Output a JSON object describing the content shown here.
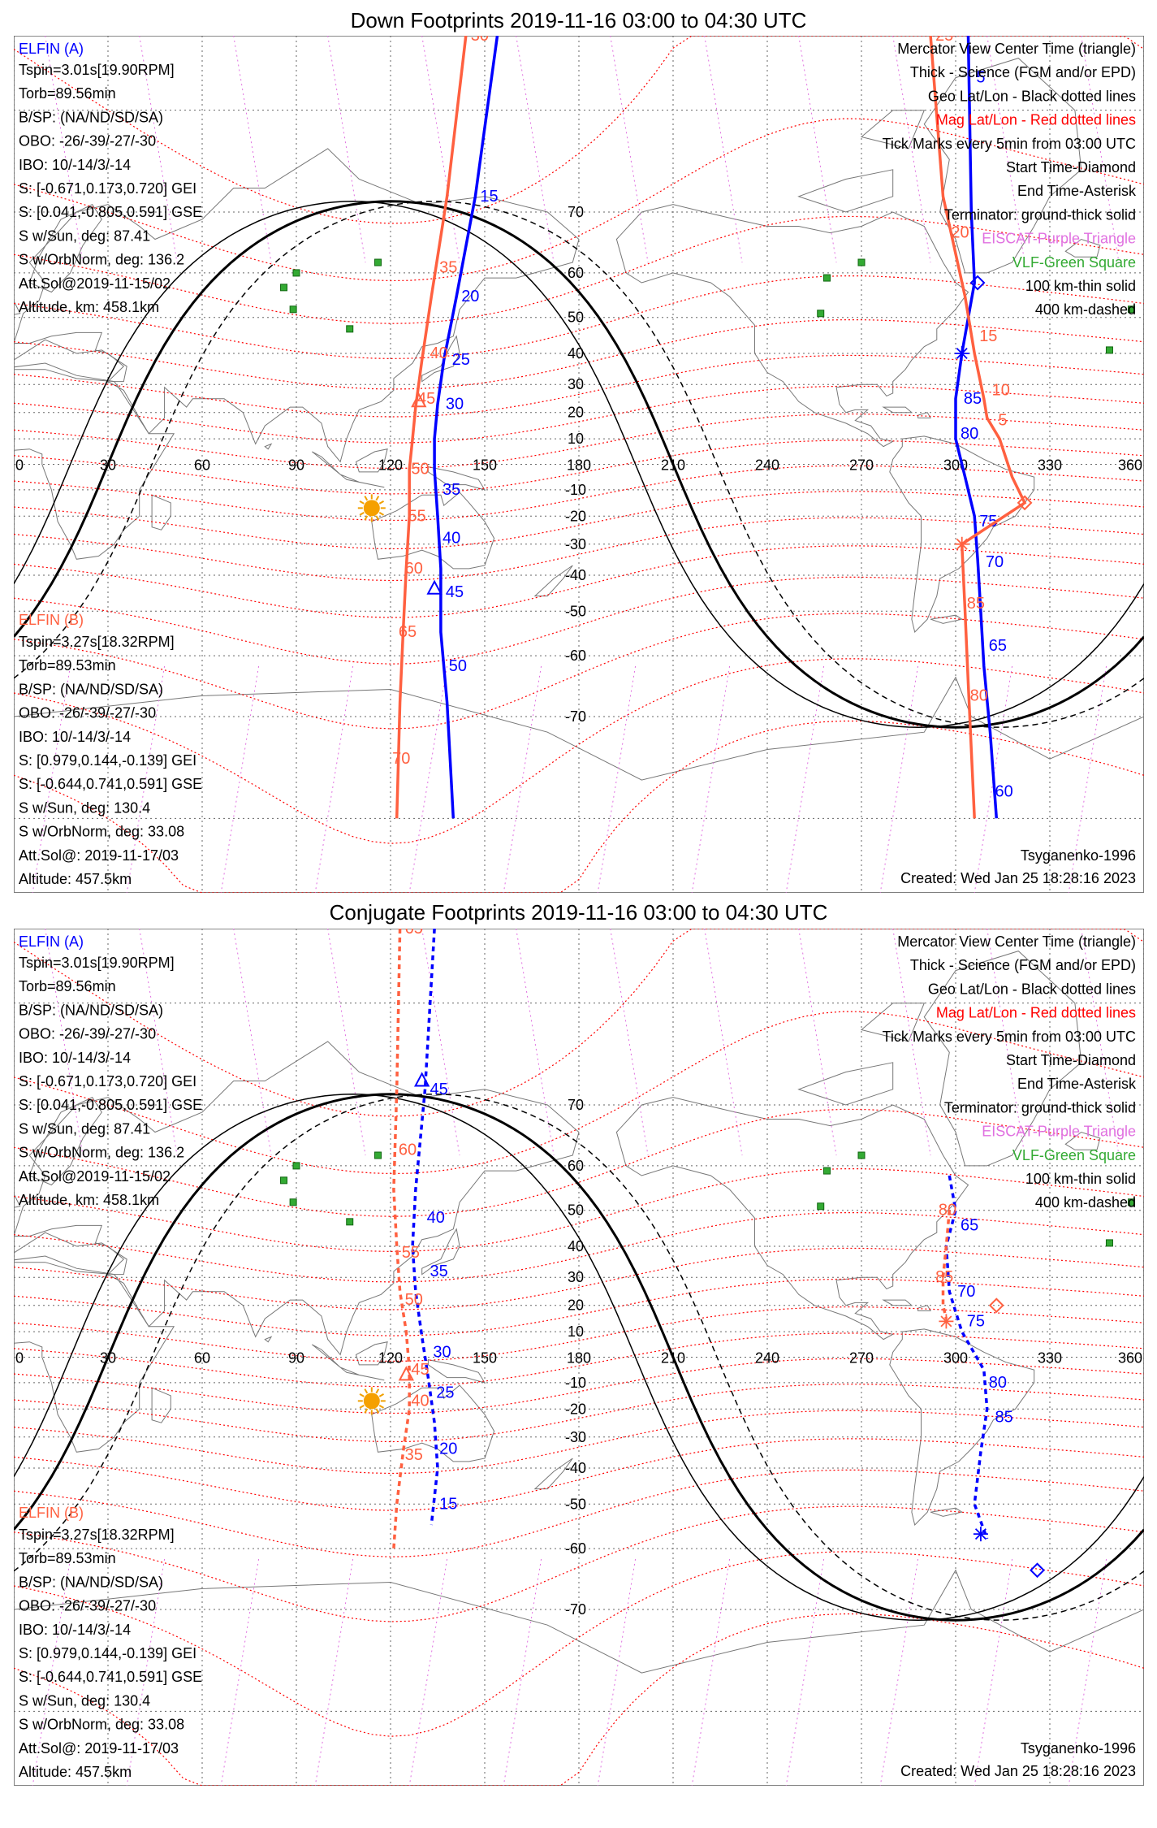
{
  "panels": [
    {
      "title": "Down Footprints 2019-11-16 03:00 to 04:30 UTC",
      "elfin_a": {
        "name": "ELFIN (A)",
        "lines": [
          "Tspin=3.01s[19.90RPM]",
          "Torb=89.56min",
          "B/SP: (NA/ND/SD/SA)",
          "OBO: -26/-39/-27/-30",
          "IBO: 10/-14/3/-14",
          "S: [-0.671,0.173,0.720] GEI",
          "S: [0.041,-0.805,0.591] GSE",
          "S w/Sun, deg: 87.41",
          "S w/OrbNorm, deg: 136.2",
          "Att.Sol@2019-11-15/02",
          "Altitude, km: 458.1km"
        ]
      },
      "elfin_b": {
        "name": "ELFIN (B)",
        "lines": [
          "Tspin=3.27s[18.32RPM]",
          "Torb=89.53min",
          "B/SP: (NA/ND/SD/SA)",
          "OBO: -26/-39/-27/-30",
          "IBO: 10/-14/3/-14",
          "S: [0.979,0.144,-0.139] GEI",
          "S: [-0.644,0.741,0.591] GSE",
          "S w/Sun, deg: 130.4",
          "S w/OrbNorm, deg: 33.08",
          "Att.Sol@: 2019-11-17/03",
          "Altitude: 457.5km"
        ]
      },
      "legend": [
        "Mercator View Center Time (triangle)",
        "Thick - Science (FGM and/or EPD)",
        "Geo Lat/Lon - Black dotted lines",
        "Mag Lat/Lon - Red dotted lines",
        "Tick Marks every 5min from 03:00 UTC",
        "Start Time-Diamond",
        "End Time-Asterisk",
        "Terminator: ground-thick solid",
        "EISCAT-Purple Triangle",
        "VLF-Green Square",
        "100 km-thin solid",
        "400 km-dashed"
      ],
      "model": "Tsyganenko-1996",
      "created": "Created: Wed Jan 25 18:28:16 2023",
      "traces": [
        {
          "sat": "A",
          "color": "#0000ff",
          "style": "solid",
          "lon": [
            154,
            147,
            141,
            137,
            135,
            134,
            134,
            135,
            136,
            136,
            138,
            140
          ],
          "lat": [
            84,
            72,
            55,
            38,
            23,
            10,
            -2,
            -20,
            -38,
            -55,
            -68,
            -80
          ],
          "ticks": [
            {
              "t": "15",
              "lon": 147,
              "lat": 72
            },
            {
              "t": "20",
              "lon": 141,
              "lat": 55
            },
            {
              "t": "25",
              "lon": 138,
              "lat": 38
            },
            {
              "t": "30",
              "lon": 136,
              "lat": 23
            },
            {
              "t": "35",
              "lon": 135,
              "lat": -10
            },
            {
              "t": "40",
              "lon": 135,
              "lat": -28
            },
            {
              "t": "45",
              "lon": 136,
              "lat": -45
            },
            {
              "t": "50",
              "lon": 137,
              "lat": -62
            }
          ],
          "marker": {
            "type": "triangle",
            "lon": 134,
            "lat": -44
          }
        },
        {
          "sat": "B",
          "color": "#ff6040",
          "style": "solid",
          "lon": [
            144,
            138,
            133,
            130,
            128,
            127,
            126,
            126,
            125,
            124,
            123,
            122
          ],
          "lat": [
            84,
            72,
            55,
            38,
            22,
            10,
            -2,
            -20,
            -38,
            -55,
            -68,
            -80
          ],
          "ticks": [
            {
              "t": "30",
              "lon": 144,
              "lat": 84
            },
            {
              "t": "35",
              "lon": 134,
              "lat": 61
            },
            {
              "t": "40",
              "lon": 131,
              "lat": 40
            },
            {
              "t": "45",
              "lon": 127,
              "lat": 25
            },
            {
              "t": "50",
              "lon": 125,
              "lat": -2
            },
            {
              "t": "55",
              "lon": 124,
              "lat": -20
            },
            {
              "t": "60",
              "lon": 123,
              "lat": -38
            },
            {
              "t": "65",
              "lon": 121,
              "lat": -55
            },
            {
              "t": "70",
              "lon": 119,
              "lat": -75
            }
          ],
          "marker": {
            "type": "triangle",
            "lon": 129,
            "lat": 24
          }
        },
        {
          "sat": "A",
          "color": "#0000ff",
          "style": "solid",
          "lon": [
            304,
            305,
            306,
            302,
            300,
            300,
            303,
            306,
            307,
            308,
            309,
            311,
            313
          ],
          "lat": [
            84,
            70,
            58,
            40,
            25,
            10,
            -5,
            -20,
            -35,
            -50,
            -62,
            -72,
            -80
          ],
          "ticks": [
            {
              "t": "5",
              "lon": 305,
              "lat": 82
            },
            {
              "t": "85",
              "lon": 301,
              "lat": 25
            },
            {
              "t": "80",
              "lon": 300,
              "lat": 12
            },
            {
              "t": "75",
              "lon": 306,
              "lat": -22
            },
            {
              "t": "70",
              "lon": 308,
              "lat": -36
            },
            {
              "t": "65",
              "lon": 309,
              "lat": -58
            },
            {
              "t": "60",
              "lon": 311,
              "lat": -78
            }
          ],
          "start": {
            "lon": 307,
            "lat": 58
          },
          "end": {
            "lon": 302,
            "lat": 40
          }
        },
        {
          "sat": "B",
          "color": "#ff6040",
          "style": "solid",
          "lon": [
            292,
            296,
            303,
            306,
            309,
            310,
            314,
            318,
            322,
            302,
            303,
            304,
            306
          ],
          "lat": [
            84,
            72,
            55,
            40,
            25,
            18,
            10,
            -5,
            -15,
            -30,
            -50,
            -65,
            -80
          ],
          "ticks": [
            {
              "t": "25",
              "lon": 292,
              "lat": 84
            },
            {
              "t": "20",
              "lon": 297,
              "lat": 67
            },
            {
              "t": "15",
              "lon": 306,
              "lat": 45
            },
            {
              "t": "10",
              "lon": 310,
              "lat": 28
            },
            {
              "t": "5",
              "lon": 312,
              "lat": 17
            },
            {
              "t": "85",
              "lon": 302,
              "lat": -48
            },
            {
              "t": "80",
              "lon": 303,
              "lat": -67
            }
          ],
          "start": {
            "lon": 322,
            "lat": -15
          },
          "end": {
            "lon": 302,
            "lat": -30
          }
        }
      ]
    },
    {
      "title": "Conjugate Footprints 2019-11-16 03:00 to 04:30 UTC",
      "elfin_a": {
        "name": "ELFIN (A)",
        "lines": [
          "Tspin=3.01s[19.90RPM]",
          "Torb=89.56min",
          "B/SP: (NA/ND/SD/SA)",
          "OBO: -26/-39/-27/-30",
          "IBO: 10/-14/3/-14",
          "S: [-0.671,0.173,0.720] GEI",
          "S: [0.041,-0.805,0.591] GSE",
          "S w/Sun, deg: 87.41",
          "S w/OrbNorm, deg: 136.2",
          "Att.Sol@2019-11-15/02",
          "Altitude, km: 458.1km"
        ]
      },
      "elfin_b": {
        "name": "ELFIN (B)",
        "lines": [
          "Tspin=3.27s[18.32RPM]",
          "Torb=89.53min",
          "B/SP: (NA/ND/SD/SA)",
          "OBO: -26/-39/-27/-30",
          "IBO: 10/-14/3/-14",
          "S: [0.979,0.144,-0.139] GEI",
          "S: [-0.644,0.741,0.591] GSE",
          "S w/Sun, deg: 130.4",
          "S w/OrbNorm, deg: 33.08",
          "Att.Sol@: 2019-11-17/03",
          "Altitude: 457.5km"
        ]
      },
      "legend": [
        "Mercator View Center Time (triangle)",
        "Thick - Science (FGM and/or EPD)",
        "Geo Lat/Lon - Black dotted lines",
        "Mag Lat/Lon - Red dotted lines",
        "Tick Marks every 5min from 03:00 UTC",
        "Start Time-Diamond",
        "End Time-Asterisk",
        "Terminator: ground-thick solid",
        "EISCAT-Purple Triangle",
        "VLF-Green Square",
        "100 km-thin solid",
        "400 km-dashed"
      ],
      "model": "Tsyganenko-1996",
      "created": "Created: Wed Jan 25 18:28:16 2023",
      "traces": [
        {
          "sat": "A",
          "color": "#0000ff",
          "style": "dashed",
          "lon": [
            134,
            131,
            128,
            127,
            128,
            130,
            132,
            134,
            135,
            133
          ],
          "lat": [
            84,
            72,
            55,
            40,
            25,
            8,
            -8,
            -25,
            -40,
            -55
          ],
          "ticks": [
            {
              "t": "45",
              "lon": 131,
              "lat": 72
            },
            {
              "t": "40",
              "lon": 130,
              "lat": 48
            },
            {
              "t": "35",
              "lon": 131,
              "lat": 32
            },
            {
              "t": "30",
              "lon": 132,
              "lat": 2
            },
            {
              "t": "25",
              "lon": 133,
              "lat": -14
            },
            {
              "t": "20",
              "lon": 134,
              "lat": -34
            },
            {
              "t": "15",
              "lon": 134,
              "lat": -50
            }
          ],
          "marker": {
            "type": "triangle",
            "lon": 130,
            "lat": 73
          }
        },
        {
          "sat": "B",
          "color": "#ff6040",
          "style": "dashed",
          "lon": [
            123,
            122,
            121,
            122,
            123,
            125,
            126,
            126,
            124,
            122,
            121
          ],
          "lat": [
            84,
            72,
            55,
            40,
            25,
            10,
            -5,
            -20,
            -35,
            -50,
            -60
          ],
          "ticks": [
            {
              "t": "65",
              "lon": 123,
              "lat": 84
            },
            {
              "t": "60",
              "lon": 121,
              "lat": 63
            },
            {
              "t": "55",
              "lon": 122,
              "lat": 38
            },
            {
              "t": "50",
              "lon": 123,
              "lat": 22
            },
            {
              "t": "45",
              "lon": 125,
              "lat": -5
            },
            {
              "t": "40",
              "lon": 125,
              "lat": -17
            },
            {
              "t": "35",
              "lon": 123,
              "lat": -36
            }
          ],
          "marker": {
            "type": "triangle",
            "lon": 125,
            "lat": -7
          }
        },
        {
          "sat": "A",
          "color": "#0000ff",
          "style": "dashed",
          "lon": [
            298,
            300,
            297,
            298,
            302,
            309,
            310,
            308,
            306,
            310
          ],
          "lat": [
            58,
            50,
            40,
            25,
            10,
            -5,
            -20,
            -35,
            -50,
            -58
          ],
          "ticks": [
            {
              "t": "65",
              "lon": 300,
              "lat": 46
            },
            {
              "t": "70",
              "lon": 299,
              "lat": 25
            },
            {
              "t": "75",
              "lon": 302,
              "lat": 14
            },
            {
              "t": "80",
              "lon": 309,
              "lat": -10
            },
            {
              "t": "85",
              "lon": 311,
              "lat": -23
            }
          ],
          "start": {
            "lon": 326,
            "lat": -64
          },
          "end": {
            "lon": 308,
            "lat": -57
          }
        },
        {
          "sat": "B",
          "color": "#ff6040",
          "style": "dashed",
          "lon": [
            298,
            297,
            296,
            296,
            297
          ],
          "lat": [
            50,
            40,
            30,
            20,
            15
          ],
          "ticks": [
            {
              "t": "80",
              "lon": 293,
              "lat": 50
            },
            {
              "t": "85",
              "lon": 292,
              "lat": 30
            }
          ],
          "start": {
            "lon": 313,
            "lat": 20
          },
          "end": {
            "lon": 297,
            "lat": 14
          }
        }
      ]
    }
  ],
  "axis": {
    "lon_ticks": [
      "0",
      "30",
      "60",
      "90",
      "120",
      "150",
      "180",
      "210",
      "240",
      "270",
      "300",
      "330",
      "360"
    ],
    "lat_ticks": [
      "70",
      "60",
      "50",
      "40",
      "30",
      "20",
      "10",
      "-10",
      "-20",
      "-30",
      "-40",
      "-50",
      "-60",
      "-70"
    ]
  },
  "colors": {
    "elfin_a": "#0000ff",
    "elfin_b": "#ff6040",
    "mag_grid": "#ff0000",
    "eiscat": "#e070e0",
    "vlf": "#33aa33",
    "terminator": "#000000"
  }
}
